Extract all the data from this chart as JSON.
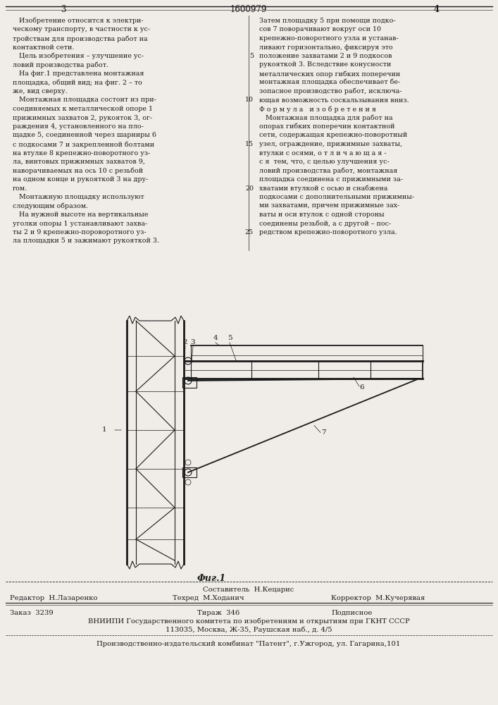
{
  "page_number_left": "3",
  "patent_number": "1600979",
  "page_number_right": "4",
  "bg_color": "#f0ede8",
  "text_color": "#1a1a1a",
  "left_col_text": [
    "   Изобретение относится к электри-",
    "ческому транспорту, в частности к ус-",
    "тройствам для производства работ на",
    "контактной сети.",
    "   Цель изобретения – улучшение ус-",
    "ловий производства работ.",
    "   На фиг.1 представлена монтажная",
    "площадка, общий вид; на фиг. 2 – то",
    "же, вид сверху.",
    "   Монтажная площадка состоит из при-",
    "соединяемых к металлической опоре 1",
    "прижимных захватов 2, рукояток 3, ог-",
    "раждения 4, установленного на пло-",
    "щадке 5, соединенной через шарниры 6",
    "с подкосами 7 и закрепленной болтами",
    "на втулке 8 крепежно-поворотного уз-",
    "ла, винтовых прижимных захватов 9,",
    "наворачиваемых на ось 10 с резьбой",
    "на одном конце и рукояткой 3 на дру-",
    "гом.",
    "   Монтажную площадку используют",
    "следующим образом.",
    "   На нужной высоте на вертикальные",
    "уголки опоры 1 устанавливают захва-",
    "ты 2 и 9 крепежно-пороворотного уз-",
    "ла площадки 5 и зажимают рукояткой 3."
  ],
  "right_col_text": [
    "Затем площадку 5 при помощи подко-",
    "сов 7 поворачивают вокруг оси 10",
    "крепежно-поворотного узла и устанав-",
    "ливают горизонтально, фиксируя это",
    "положение захватами 2 и 9 подкосов",
    "рукояткой 3. Вследствие конусности",
    "металлических опор гибких поперечин",
    "монтажная площадка обеспечивает бе-",
    "зопасное производство работ, исключа-",
    "ющая возможность соскальзывания вниз.",
    "Ф о р м у л а   и з о б р е т е н и я",
    "   Монтажная площадка для работ на",
    "опорах гибких поперечин контактной",
    "сети, содержащая крепежно-поворотный",
    "узел, ограждение, прижимные захваты,",
    "втулки с осями, о т л и ч а ю щ а я -",
    "с я  тем, что, с целью улучшения ус-",
    "ловий производства работ, монтажная",
    "площадка соединена с прижимными за-",
    "хватами втулкой с осью и снабжена",
    "подкосами с дополнительными прижимны-",
    "ми захватами, причем прижимные зах-",
    "ваты и оси втулок с одной стороны",
    "соединены резьбой, а с другой – пос-",
    "редством крепежно-поворотного узла."
  ],
  "right_line_numbers": [
    5,
    10,
    15,
    20,
    25
  ],
  "fig_caption": "Фиг.1",
  "footer_sostavitel": "Составитель  Н.Кецарис",
  "footer_redaktor": "Редактор  Н.Лазаренко",
  "footer_tekhred": "Техред  М.Ходанич",
  "footer_korrektor": "Корректор  М.Кучерявая",
  "footer_order": "Заказ  3239",
  "footer_tirazh": "Тираж  346",
  "footer_podpisnoe": "Подписное",
  "footer_vniiipi": "ВНИИПИ Государственного комитета по изобретениям и открытиям при ГКНТ СССР",
  "footer_address": "113035, Москва, Ж-35, Раушская наб., д. 4/5",
  "footer_production": "Производственно-издательский комбинат \"Патент\", г.Ужгород, ул. Гагарина,101"
}
